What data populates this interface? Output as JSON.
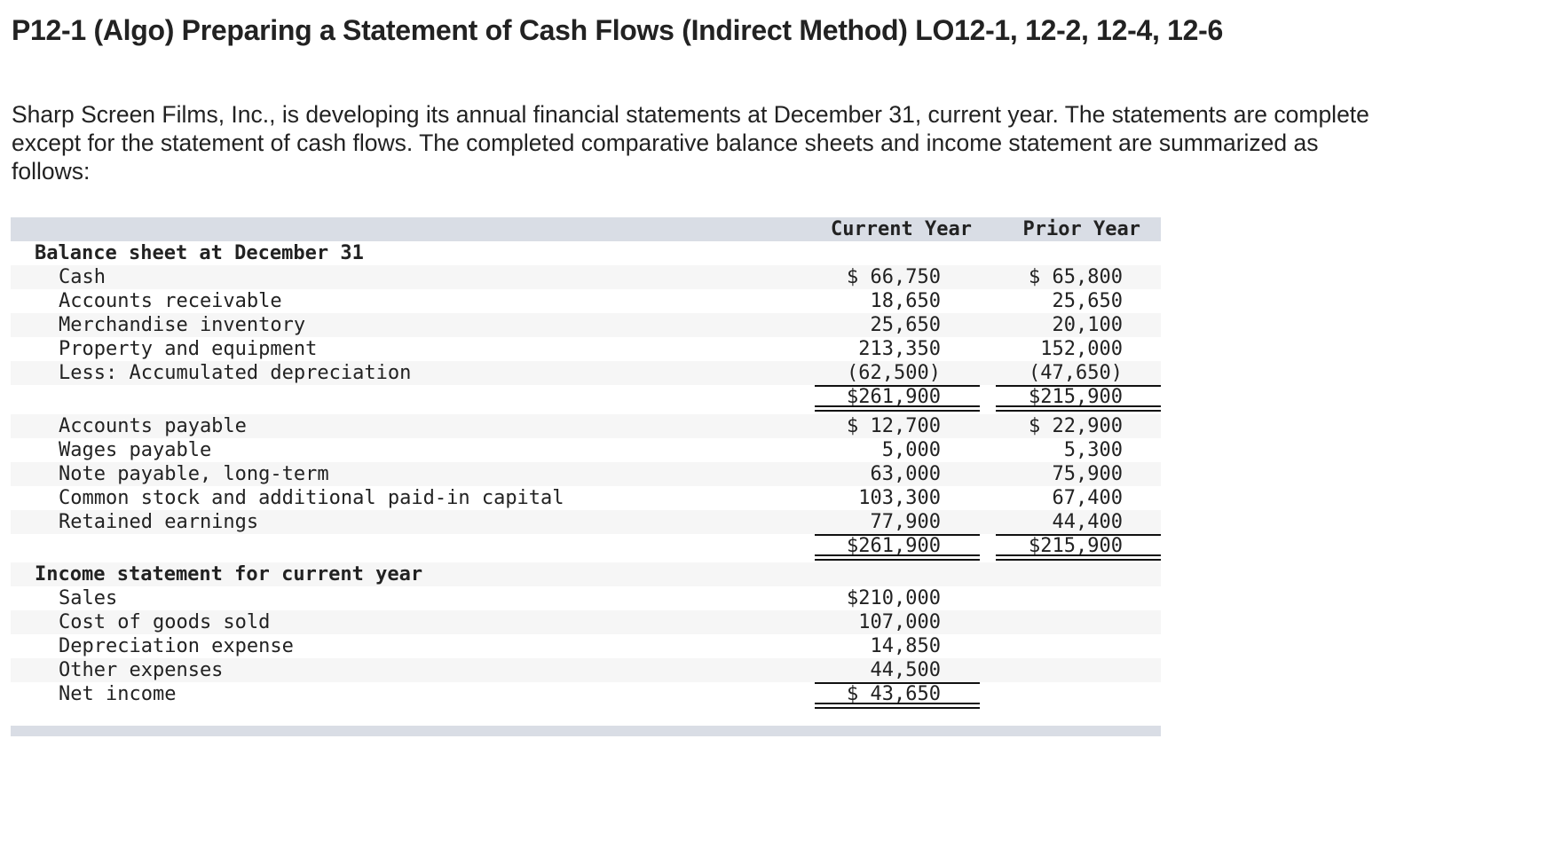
{
  "title": "P12-1 (Algo) Preparing a Statement of Cash Flows (Indirect Method) LO12-1, 12-2, 12-4, 12-6",
  "intro": "Sharp Screen Films, Inc., is developing its annual financial statements at December 31, current year. The statements are complete except for the statement of cash flows. The completed comparative balance sheets and income statement are summarized as follows:",
  "table": {
    "columns": {
      "current": "Current Year",
      "prior": "Prior Year"
    },
    "balance_sheet": {
      "heading": "Balance sheet at December 31",
      "assets": [
        {
          "label": "Cash",
          "current": "$ 66,750",
          "prior": "$ 65,800"
        },
        {
          "label": "Accounts receivable",
          "current": "18,650",
          "prior": "25,650"
        },
        {
          "label": "Merchandise inventory",
          "current": "25,650",
          "prior": "20,100"
        },
        {
          "label": "Property and equipment",
          "current": "213,350",
          "prior": "152,000"
        },
        {
          "label": "Less: Accumulated depreciation",
          "current": "(62,500)",
          "prior": "(47,650)"
        }
      ],
      "total_assets": {
        "current": "$261,900",
        "prior": "$215,900"
      },
      "liabilities_equity": [
        {
          "label": "Accounts payable",
          "current": "$ 12,700",
          "prior": "$ 22,900"
        },
        {
          "label": "Wages payable",
          "current": "5,000",
          "prior": "5,300"
        },
        {
          "label": "Note payable, long-term",
          "current": "63,000",
          "prior": "75,900"
        },
        {
          "label": "Common stock and additional paid-in capital",
          "current": "103,300",
          "prior": "67,400"
        },
        {
          "label": "Retained earnings",
          "current": "77,900",
          "prior": "44,400"
        }
      ],
      "total_liabilities_equity": {
        "current": "$261,900",
        "prior": "$215,900"
      }
    },
    "income_statement": {
      "heading": "Income statement for current year",
      "items": [
        {
          "label": "Sales",
          "current": "$210,000"
        },
        {
          "label": "Cost of goods sold",
          "current": "107,000"
        },
        {
          "label": "Depreciation expense",
          "current": "14,850"
        },
        {
          "label": "Other expenses",
          "current": "44,500"
        }
      ],
      "net_income": {
        "label": "Net income",
        "current": "$ 43,650"
      }
    }
  },
  "colors": {
    "header_band": "#d9dde5",
    "row_stripe": "#f6f6f6",
    "text": "#222222"
  }
}
